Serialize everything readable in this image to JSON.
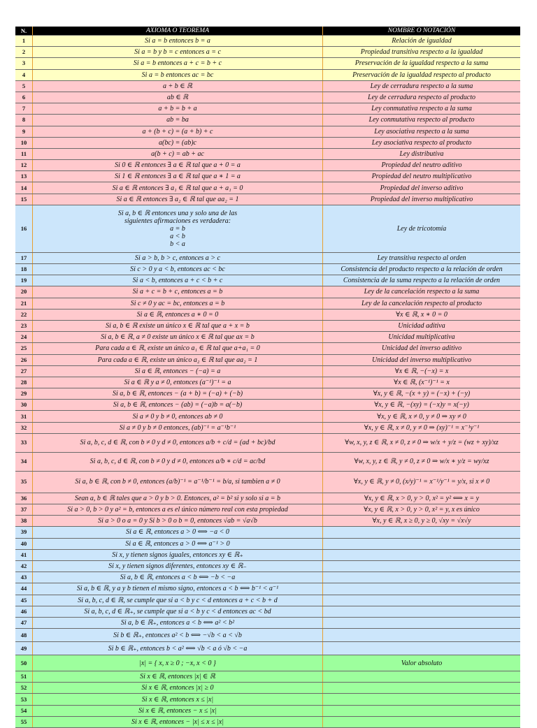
{
  "header": {
    "n": "N.",
    "axiom": "AXIOMA O TEOREMA",
    "name": "NOMBRE O NOTACIÓN"
  },
  "colors": {
    "yellow": "#ffffc4",
    "pink": "#ffc9cd",
    "blue": "#cce6fb",
    "green": "#9dff9d",
    "header": "#000000",
    "divider": "#e8a030"
  },
  "rows": [
    {
      "n": "1",
      "axiom": "Si a = b entonces b = a",
      "name": "Relación de igualdad",
      "color": "yellow"
    },
    {
      "n": "2",
      "axiom": "Si a = b y b = c entonces a = c",
      "name": "Propiedad transitiva respecto a la igualdad",
      "color": "yellow"
    },
    {
      "n": "3",
      "axiom": "Si a = b entonces a + c = b + c",
      "name": "Preservación de la igualdad respecto a la suma",
      "color": "yellow"
    },
    {
      "n": "4",
      "axiom": "Si a = b entonces ac = bc",
      "name": "Preservación de la igualdad respecto al producto",
      "color": "yellow"
    },
    {
      "n": "5",
      "axiom": "a + b ∈ ℝ",
      "name": "Ley de cerradura respecto a la suma",
      "color": "pink"
    },
    {
      "n": "6",
      "axiom": "ab ∈ ℝ",
      "name": "Ley de cerradura respecto al producto",
      "color": "pink"
    },
    {
      "n": "7",
      "axiom": "a + b = b + a",
      "name": "Ley conmutativa respecto a la suma",
      "color": "pink"
    },
    {
      "n": "8",
      "axiom": "ab = ba",
      "name": "Ley conmutativa respecto al producto",
      "color": "pink"
    },
    {
      "n": "9",
      "axiom": "a + (b + c) = (a + b) + c",
      "name": "Ley asociativa respecto a la suma",
      "color": "pink"
    },
    {
      "n": "10",
      "axiom": "a(bc) = (ab)c",
      "name": "Ley asociativa respecto al producto",
      "color": "pink"
    },
    {
      "n": "11",
      "axiom": "a(b + c) = ab + ac",
      "name": "Ley distributiva",
      "color": "pink"
    },
    {
      "n": "12",
      "axiom": "Si 0 ∈ ℝ entonces ∃ a ∈ ℝ tal que a + 0 = a",
      "name": "Propiedad del neutro aditivo",
      "color": "pink"
    },
    {
      "n": "13",
      "axiom": "Si 1 ∈ ℝ entonces ∃ a ∈ ℝ tal que a ∗ 1 = a",
      "name": "Propiedad del neutro multiplicativo",
      "color": "pink"
    },
    {
      "n": "14",
      "axiom": "Si a ∈ ℝ entonces ∃ a₁ ∈ ℝ tal que a + a₁ = 0",
      "name": "Propiedad del inverso aditivo",
      "color": "pink"
    },
    {
      "n": "15",
      "axiom": "Si a ∈ ℝ entonces ∃ a₂ ∈ ℝ tal que aa₂ = 1",
      "name": "Propiedad del inverso multiplicativo",
      "color": "pink"
    },
    {
      "n": "16",
      "axiom": "Si a, b ∈ ℝ entonces una y solo una de las\nsiguientes afirmaciones es verdadera:\na = b\na < b\nb < a",
      "name": "Ley de tricotomía",
      "color": "blue"
    },
    {
      "n": "17",
      "axiom": "Si a > b, b > c, entonces a > c",
      "name": "Ley transitiva respecto al orden",
      "color": "blue"
    },
    {
      "n": "18",
      "axiom": "Si c > 0 y a < b, entonces ac < bc",
      "name": "Consistencia del producto respecto a la relación de orden",
      "color": "blue"
    },
    {
      "n": "19",
      "axiom": "Si a < b, entonces a + c < b + c",
      "name": "Consistencia de la suma  respecto a la relación de orden",
      "color": "blue"
    },
    {
      "n": "20",
      "axiom": "Si a + c = b + c, entonces a = b",
      "name": "Ley de la cancelación respecto a la suma",
      "color": "pink"
    },
    {
      "n": "21",
      "axiom": "Si c ≠ 0 y ac = bc, entonces a = b",
      "name": "Ley de la cancelación respecto al producto",
      "color": "pink"
    },
    {
      "n": "22",
      "axiom": "Si a ∈ ℝ, entonces a ∗ 0 = 0",
      "name": "∀x ∈ ℝ, x ∗ 0 = 0",
      "color": "pink"
    },
    {
      "n": "23",
      "axiom": "Si a, b ∈ ℝ existe un único x ∈ ℝ tal que a + x = b",
      "name": "Unicidad aditiva",
      "color": "pink"
    },
    {
      "n": "24",
      "axiom": "Si a, b ∈ ℝ, a ≠ 0 existe un único x ∈ ℝ tal que ax = b",
      "name": "Unicidad multiplicativa",
      "color": "pink"
    },
    {
      "n": "25",
      "axiom": "Para cada a ∈ ℝ, existe un único a₁ ∈ ℝ tal que a+a₁ = 0",
      "name": "Unicidad del inverso aditivo",
      "color": "pink"
    },
    {
      "n": "26",
      "axiom": "Para cada a ∈ ℝ, existe un único a₂ ∈ ℝ tal que aa₂ = 1",
      "name": "Unicidad del inverso multiplicativo",
      "color": "pink"
    },
    {
      "n": "27",
      "axiom": "Si a ∈ ℝ, entonces − (−a) = a",
      "name": "∀x ∈ ℝ, −(−x) = x",
      "color": "pink"
    },
    {
      "n": "28",
      "axiom": "Si a ∈ ℝ y a ≠ 0, entonces (a⁻¹)⁻¹ = a",
      "name": "∀x ∈ ℝ, (x⁻¹)⁻¹ = x",
      "color": "pink"
    },
    {
      "n": "29",
      "axiom": "Si a, b ∈ ℝ, entonces − (a + b) = (−a) + (−b)",
      "name": "∀x, y ∈ ℝ, −(x + y) = (−x) + (−y)",
      "color": "pink"
    },
    {
      "n": "30",
      "axiom": "Si a, b ∈ ℝ, entonces − (ab) = (−a)b = a(−b)",
      "name": "∀x, y ∈ ℝ, −(xy) = (−x)y = x(−y)",
      "color": "pink"
    },
    {
      "n": "31",
      "axiom": "Si a ≠ 0 y b ≠ 0, entonces ab ≠ 0",
      "name": "∀x, y ∈ ℝ, x ≠ 0, y ≠ 0 ⇒ xy ≠ 0",
      "color": "pink"
    },
    {
      "n": "32",
      "axiom": "Si a ≠ 0 y b ≠ 0 entonces, (ab)⁻¹ = a⁻¹b⁻¹",
      "name": "∀x, y ∈ ℝ, x ≠ 0, y ≠ 0 ⇒ (xy)⁻¹ = x⁻¹y⁻¹",
      "color": "pink"
    },
    {
      "n": "33",
      "axiom": "Si a, b, c, d ∈ ℝ, con b ≠ 0 y d ≠ 0, entonces a/b + c/d = (ad + bc)/bd",
      "name": "∀w, x, y, z ∈ ℝ, x ≠ 0, z ≠ 0 ⇒ w/x + y/z = (wz + xy)/xz",
      "color": "pink"
    },
    {
      "n": "34",
      "axiom": "Si a, b, c, d ∈ ℝ, con b ≠ 0 y d ≠ 0, entonces a/b ∗ c/d = ac/bd",
      "name": "∀w, x, y, z ∈ ℝ, y ≠ 0, z ≠ 0 ⇒ w/x ∗ y/z = wy/xz",
      "color": "pink"
    },
    {
      "n": "35",
      "axiom": "Si a, b ∈ ℝ, con b ≠ 0, entonces (a/b)⁻¹ = a⁻¹/b⁻¹ = b/a, si tambien a ≠ 0",
      "name": "∀x, y ∈ ℝ, y ≠ 0, (x/y)⁻¹ = x⁻¹/y⁻¹ = y/x, si x ≠ 0",
      "color": "pink"
    },
    {
      "n": "36",
      "axiom": "Sean a, b ∈ ℝ tales que a > 0 y b > 0. Entonces, a² = b² si y solo si a = b",
      "name": "∀x, y ∈ ℝ, x > 0, y > 0, x² = y² ⟺ x = y",
      "color": "pink"
    },
    {
      "n": "37",
      "axiom": "Si a > 0, b > 0 y a² = b, entonces a es el único número real con esta propiedad",
      "name": "∀x, y ∈ ℝ, x > 0, y > 0, x² = y, x es único",
      "color": "pink"
    },
    {
      "n": "38",
      "axiom": "Si a > 0 o a = 0 y Si b > 0 o b = 0, entonces √ab = √a√b",
      "name": "∀x, y ∈ ℝ, x ≥ 0, y ≥ 0, √xy = √x√y",
      "color": "pink"
    },
    {
      "n": "39",
      "axiom": "Si a ∈ ℝ, entonces a > 0 ⟺ −a < 0",
      "name": "",
      "color": "blue"
    },
    {
      "n": "40",
      "axiom": "Si a ∈ ℝ, entonces a > 0 ⟺ a⁻¹ > 0",
      "name": "",
      "color": "blue"
    },
    {
      "n": "41",
      "axiom": "Si x, y tienen signos iguales, entonces xy ∈ ℝ₊",
      "name": "",
      "color": "blue"
    },
    {
      "n": "42",
      "axiom": "Si x, y tienen signos diferentes, entonces xy ∈ ℝ₋",
      "name": "",
      "color": "blue"
    },
    {
      "n": "43",
      "axiom": "Si a, b ∈ ℝ, entonces a < b ⟺ −b < −a",
      "name": "",
      "color": "blue"
    },
    {
      "n": "44",
      "axiom": "Si a, b ∈ ℝ, y a y b tienen el mismo signo, entonces a < b ⟺ b⁻¹ < a⁻¹",
      "name": "",
      "color": "blue"
    },
    {
      "n": "45",
      "axiom": "Si a, b, c, d ∈ ℝ, se cumple que si a < b y c < d entonces a + c < b + d",
      "name": "",
      "color": "blue"
    },
    {
      "n": "46",
      "axiom": "Si a, b, c, d ∈ ℝ₊, se cumple que si a < b y c < d entonces ac < bd",
      "name": "",
      "color": "blue"
    },
    {
      "n": "47",
      "axiom": "Si a, b ∈ ℝ₊, entonces a < b ⟺ a² < b²",
      "name": "",
      "color": "blue"
    },
    {
      "n": "48",
      "axiom": "Si b ∈ ℝ₊, entonces a² < b ⟺ −√b < a < √b",
      "name": "",
      "color": "blue"
    },
    {
      "n": "49",
      "axiom": "Si b ∈ ℝ₊, entonces b < a² ⟺ √b < a  ó  √b < −a",
      "name": "",
      "color": "blue"
    },
    {
      "n": "50",
      "axiom": "|x| = { x,  x ≥ 0 ;  −x,  x < 0 }",
      "name": "Valor absoluto",
      "color": "green"
    },
    {
      "n": "51",
      "axiom": "Si x ∈ ℝ, entonces |x| ∈ ℝ",
      "name": "",
      "color": "green"
    },
    {
      "n": "52",
      "axiom": "Si x ∈ ℝ, entonces |x| ≥ 0",
      "name": "",
      "color": "green"
    },
    {
      "n": "53",
      "axiom": "Si x ∈ ℝ, entonces x ≤ |x|",
      "name": "",
      "color": "green"
    },
    {
      "n": "54",
      "axiom": "Si x ∈ ℝ, entonces − x ≤ |x|",
      "name": "",
      "color": "green"
    },
    {
      "n": "55",
      "axiom": "Si x ∈ ℝ, entonces − |x| ≤ x ≤ |x|",
      "name": "",
      "color": "green"
    }
  ]
}
